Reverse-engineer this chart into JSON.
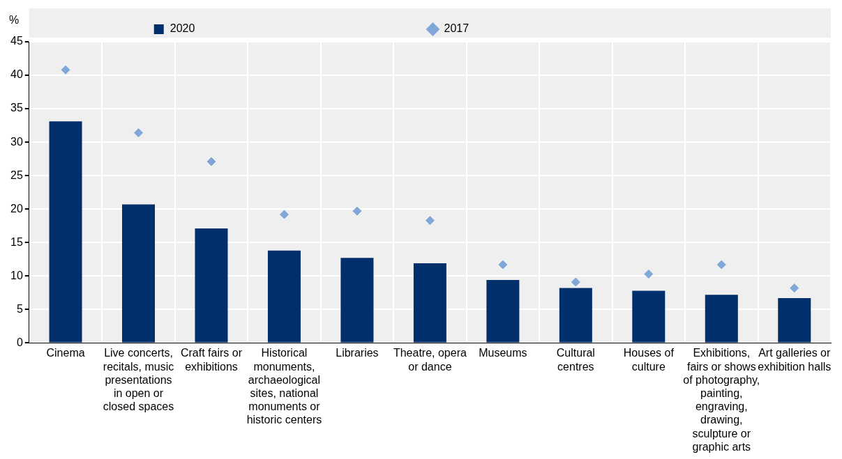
{
  "chart_data": {
    "type": "bar",
    "ylabel": "%",
    "categories": [
      "Cinema",
      "Live concerts, recitals, music presentations in open or closed spaces",
      "Craft fairs or exhibitions",
      "Historical monuments, archaeological sites, national monuments or historic centers",
      "Libraries",
      "Theatre, opera or dance",
      "Museums",
      "Cultural centres",
      "Houses of culture",
      "Exhibitions, fairs or shows of photography, painting, engraving, drawing, sculpture or graphic arts",
      "Art galleries or exhibition halls"
    ],
    "series": [
      {
        "name": "2020",
        "type": "bar",
        "color": "#002f6c",
        "values": [
          33.1,
          20.7,
          17.1,
          13.8,
          12.7,
          11.9,
          9.4,
          8.2,
          7.8,
          7.2,
          6.7
        ]
      },
      {
        "name": "2017",
        "type": "scatter",
        "color": "#7fa8d9",
        "marker": "diamond",
        "x": [
          "Cinema",
          "Live concerts, recitals, music presentations in open or closed spaces",
          "Craft fairs or exhibitions",
          "Historical monuments, archaeological sites, national monuments or historic centers",
          "Libraries",
          "Theatre, opera or dance",
          "Museums",
          "Cultural centres",
          "Houses of culture",
          "Exhibitions, fairs or shows of photography, painting, engraving, drawing, sculpture or graphic arts",
          "Art galleries or exhibition halls"
        ],
        "values": [
          40.8,
          31.4,
          27.1,
          19.2,
          19.7,
          18.3,
          11.7,
          9.1,
          10.3,
          11.7,
          8.2
        ]
      }
    ],
    "ylim": [
      0,
      45
    ],
    "yticks": [
      0,
      5,
      10,
      15,
      20,
      25,
      30,
      35,
      40,
      45
    ],
    "grid": true,
    "legend": "top"
  }
}
